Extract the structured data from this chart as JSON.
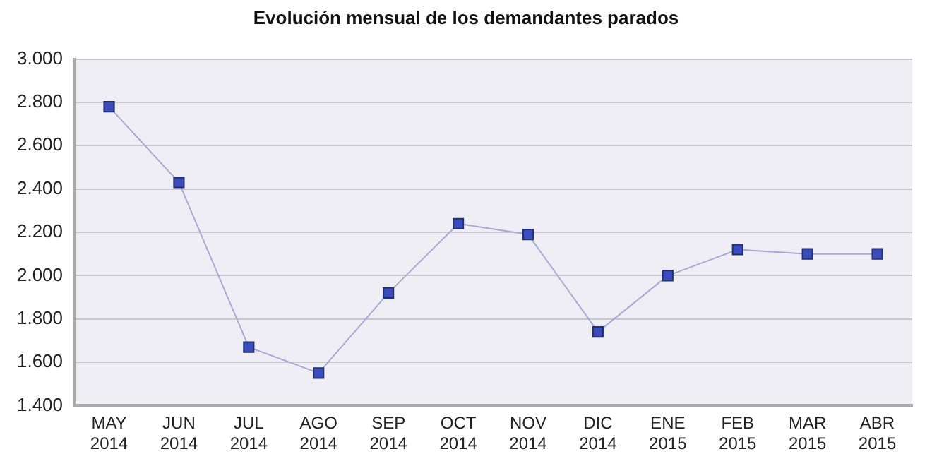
{
  "chart_data": {
    "type": "line",
    "title": "Evolución mensual de los demandantes parados",
    "categories": [
      "MAY 2014",
      "JUN 2014",
      "JUL 2014",
      "AGO 2014",
      "SEP 2014",
      "OCT 2014",
      "NOV 2014",
      "DIC 2014",
      "ENE 2015",
      "FEB 2015",
      "MAR 2015",
      "ABR 2015"
    ],
    "series": [
      {
        "color": "#3a4cc0",
        "values": [
          2780,
          2430,
          1670,
          1550,
          1920,
          2240,
          2190,
          1740,
          2000,
          2120,
          2100,
          2100
        ]
      }
    ],
    "ylim": [
      1400,
      3000
    ],
    "yticks": [
      {
        "value": 1400,
        "label": "1.400"
      },
      {
        "value": 1600,
        "label": "1.600"
      },
      {
        "value": 1800,
        "label": "1.800"
      },
      {
        "value": 2000,
        "label": "2.000"
      },
      {
        "value": 2200,
        "label": "2.200"
      },
      {
        "value": 2400,
        "label": "2.400"
      },
      {
        "value": 2600,
        "label": "2.600"
      },
      {
        "value": 2800,
        "label": "2.800"
      },
      {
        "value": 3000,
        "label": "3.000"
      }
    ],
    "grid": "y",
    "legend": false,
    "marker": "square",
    "line_style": "solid"
  }
}
